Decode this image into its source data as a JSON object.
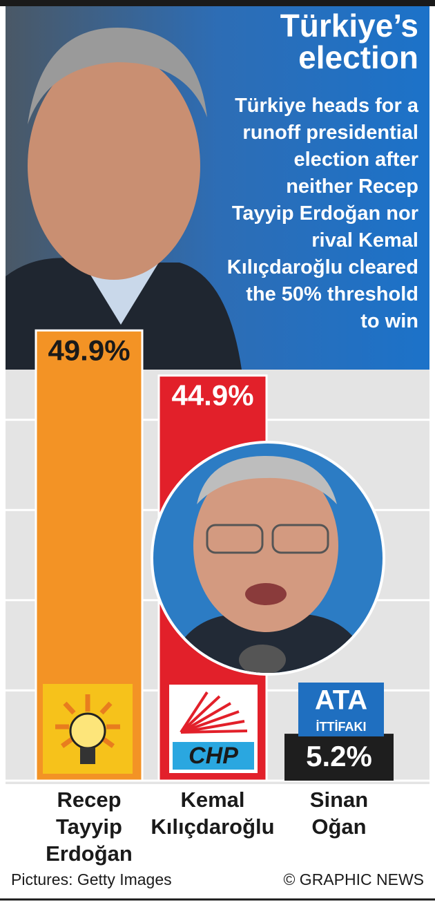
{
  "chart_data": {
    "type": "bar",
    "title": "Türkiye’s election",
    "subtitle": "Türkiye heads for a runoff presidential election after neither Recep Tayyip Erdoğan nor rival Kemal Kılıçdaroğlu cleared the 50% threshold to win",
    "categories": [
      "Recep Tayyip Erdoğan",
      "Kemal Kılıçdaroğlu",
      "Sinan Oğan"
    ],
    "values": [
      49.9,
      44.9,
      5.2
    ],
    "value_labels": [
      "49.9%",
      "44.9%",
      "5.2%"
    ],
    "colors": [
      "#f39325",
      "#e2202a",
      "#1e1e1e"
    ],
    "logo_texts": [
      "CHP",
      "ATA",
      "İTTİFAKI"
    ],
    "ylim": [
      0,
      50
    ],
    "yticks": [
      0,
      10,
      20,
      30,
      40
    ],
    "grid": true,
    "source": "Pictures: Getty Images",
    "credit": "© GRAPHIC NEWS"
  }
}
